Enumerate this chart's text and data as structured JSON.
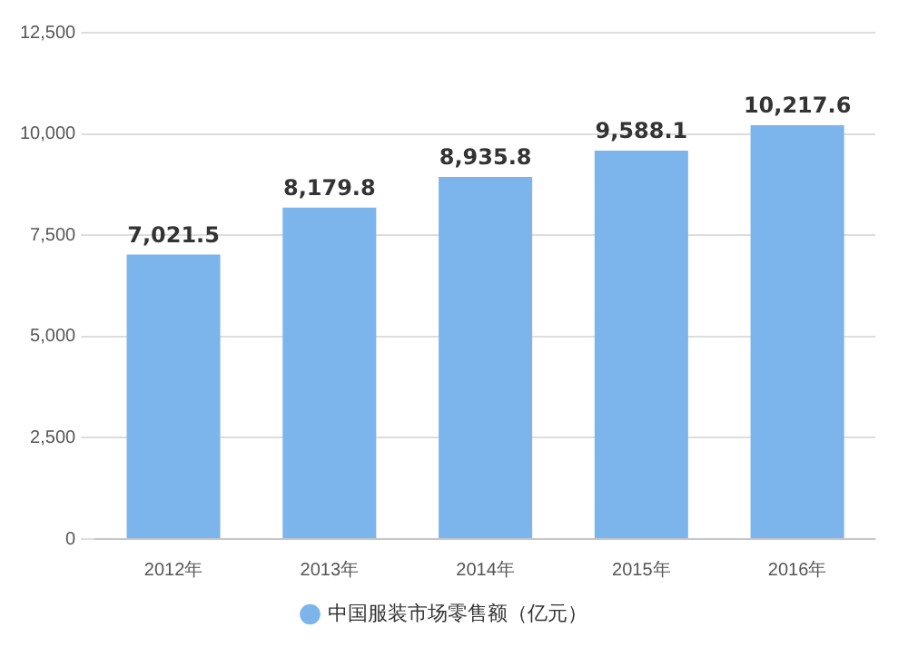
{
  "chart_data": {
    "type": "bar",
    "categories": [
      "2012年",
      "2013年",
      "2014年",
      "2015年",
      "2016年"
    ],
    "series": [
      {
        "name": "中国服装市场零售额（亿元）",
        "color": "#7cb5ec",
        "values": [
          7021.5,
          8179.8,
          8935.8,
          9588.1,
          10217.6
        ],
        "value_labels": [
          "7,021.5",
          "8,179.8",
          "8,935.8",
          "9,588.1",
          "10,217.6"
        ]
      }
    ],
    "ylim": [
      0,
      12500
    ],
    "yticks": [
      {
        "value": 0,
        "label": "0"
      },
      {
        "value": 2500,
        "label": "2,500"
      },
      {
        "value": 5000,
        "label": "5,000"
      },
      {
        "value": 7500,
        "label": "7,500"
      },
      {
        "value": 10000,
        "label": "10,000"
      },
      {
        "value": 12500,
        "label": "12,500"
      }
    ],
    "grid": "y",
    "legend": "bottom"
  }
}
